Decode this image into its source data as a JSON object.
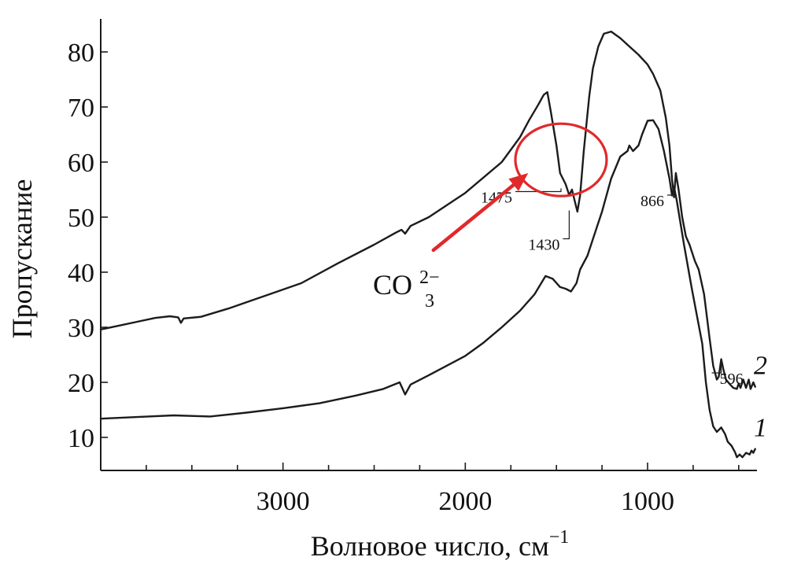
{
  "chart_data": {
    "type": "line",
    "xlabel": "Волновое число, см",
    "xlabel_sup": "−1",
    "ylabel": "Пропускание",
    "xlim": [
      4000,
      400
    ],
    "x_reversed": true,
    "ylim": [
      4,
      86
    ],
    "x_ticks": [
      3000,
      2000,
      1000
    ],
    "y_ticks": [
      10,
      20,
      30,
      40,
      50,
      60,
      70,
      80
    ],
    "grid": false,
    "legend": "none",
    "series": [
      {
        "name": "1",
        "points": [
          [
            4000,
            13.4
          ],
          [
            3800,
            13.7
          ],
          [
            3600,
            14.0
          ],
          [
            3400,
            13.8
          ],
          [
            3200,
            14.5
          ],
          [
            3000,
            15.3
          ],
          [
            2800,
            16.2
          ],
          [
            2600,
            17.6
          ],
          [
            2450,
            18.8
          ],
          [
            2360,
            20.0
          ],
          [
            2330,
            17.8
          ],
          [
            2300,
            19.6
          ],
          [
            2200,
            21.3
          ],
          [
            2000,
            24.8
          ],
          [
            1900,
            27.2
          ],
          [
            1800,
            30.0
          ],
          [
            1700,
            33.0
          ],
          [
            1620,
            36.0
          ],
          [
            1560,
            39.3
          ],
          [
            1520,
            38.8
          ],
          [
            1480,
            37.3
          ],
          [
            1450,
            37.0
          ],
          [
            1420,
            36.5
          ],
          [
            1390,
            38.0
          ],
          [
            1370,
            40.5
          ],
          [
            1330,
            43.0
          ],
          [
            1300,
            46.0
          ],
          [
            1250,
            51.0
          ],
          [
            1200,
            57.0
          ],
          [
            1150,
            61.0
          ],
          [
            1110,
            62.0
          ],
          [
            1100,
            63.0
          ],
          [
            1080,
            62.0
          ],
          [
            1050,
            63.0
          ],
          [
            1030,
            65.0
          ],
          [
            1000,
            67.5
          ],
          [
            970,
            67.6
          ],
          [
            940,
            66.0
          ],
          [
            910,
            62.0
          ],
          [
            880,
            57.0
          ],
          [
            866,
            54.0
          ],
          [
            855,
            55.5
          ],
          [
            840,
            53.0
          ],
          [
            820,
            49.0
          ],
          [
            800,
            45.0
          ],
          [
            760,
            37.5
          ],
          [
            740,
            34.0
          ],
          [
            700,
            27.0
          ],
          [
            680,
            20.0
          ],
          [
            660,
            15.0
          ],
          [
            640,
            12.0
          ],
          [
            620,
            11.0
          ],
          [
            596,
            11.8
          ],
          [
            575,
            10.6
          ],
          [
            560,
            9.2
          ],
          [
            540,
            8.5
          ],
          [
            520,
            7.3
          ],
          [
            510,
            6.4
          ],
          [
            495,
            6.9
          ],
          [
            480,
            6.4
          ],
          [
            460,
            7.2
          ],
          [
            440,
            6.9
          ],
          [
            430,
            7.6
          ],
          [
            420,
            7.2
          ],
          [
            410,
            7.9
          ]
        ]
      },
      {
        "name": "2",
        "points": [
          [
            4000,
            29.6
          ],
          [
            3900,
            30.3
          ],
          [
            3800,
            31.0
          ],
          [
            3700,
            31.7
          ],
          [
            3620,
            32.0
          ],
          [
            3575,
            31.8
          ],
          [
            3560,
            30.8
          ],
          [
            3545,
            31.6
          ],
          [
            3450,
            31.9
          ],
          [
            3300,
            33.4
          ],
          [
            3100,
            35.7
          ],
          [
            2900,
            38.0
          ],
          [
            2700,
            41.6
          ],
          [
            2500,
            45.0
          ],
          [
            2380,
            47.2
          ],
          [
            2350,
            47.7
          ],
          [
            2330,
            47.0
          ],
          [
            2300,
            48.4
          ],
          [
            2200,
            50.0
          ],
          [
            2000,
            54.4
          ],
          [
            1800,
            60.0
          ],
          [
            1700,
            64.5
          ],
          [
            1650,
            67.6
          ],
          [
            1600,
            70.4
          ],
          [
            1570,
            72.2
          ],
          [
            1550,
            72.7
          ],
          [
            1530,
            69.0
          ],
          [
            1500,
            63.0
          ],
          [
            1480,
            58.0
          ],
          [
            1450,
            56.0
          ],
          [
            1430,
            54.0
          ],
          [
            1415,
            55.0
          ],
          [
            1400,
            53.0
          ],
          [
            1385,
            51.0
          ],
          [
            1370,
            54.0
          ],
          [
            1350,
            62.0
          ],
          [
            1320,
            72.0
          ],
          [
            1300,
            77.0
          ],
          [
            1270,
            81.0
          ],
          [
            1240,
            83.3
          ],
          [
            1200,
            83.7
          ],
          [
            1150,
            82.5
          ],
          [
            1100,
            81.0
          ],
          [
            1050,
            79.5
          ],
          [
            1000,
            77.7
          ],
          [
            970,
            76.0
          ],
          [
            930,
            73.0
          ],
          [
            900,
            68.0
          ],
          [
            880,
            63.0
          ],
          [
            866,
            57.0
          ],
          [
            855,
            53.6
          ],
          [
            845,
            58.0
          ],
          [
            830,
            55.0
          ],
          [
            810,
            50.0
          ],
          [
            790,
            46.5
          ],
          [
            770,
            45.0
          ],
          [
            740,
            42.0
          ],
          [
            720,
            40.5
          ],
          [
            690,
            36.0
          ],
          [
            660,
            28.0
          ],
          [
            640,
            23.0
          ],
          [
            620,
            20.5
          ],
          [
            610,
            21.0
          ],
          [
            596,
            24.2
          ],
          [
            585,
            22.5
          ],
          [
            570,
            20.5
          ],
          [
            550,
            19.7
          ],
          [
            530,
            19.0
          ],
          [
            510,
            18.8
          ],
          [
            500,
            19.8
          ],
          [
            490,
            19.0
          ],
          [
            475,
            20.5
          ],
          [
            460,
            19.0
          ],
          [
            445,
            20.5
          ],
          [
            435,
            18.8
          ],
          [
            420,
            20.0
          ],
          [
            410,
            19.2
          ]
        ]
      }
    ],
    "peak_labels": [
      {
        "text": "1475",
        "x": 1475,
        "y": 55.5
      },
      {
        "text": "1430",
        "x": 1430,
        "y": 51.5
      },
      {
        "text": "866",
        "x": 866,
        "y": 54.0
      },
      {
        "text": "596",
        "x": 596,
        "y": 24.0
      }
    ],
    "annotation": {
      "text": "CO",
      "subscript": "3",
      "superscript": "2−",
      "circle_color": "#e0292b",
      "arrow_color": "#e0292b",
      "circle_center": [
        1475,
        60.4
      ],
      "arrow_from": [
        2175,
        44
      ],
      "arrow_to": [
        1655,
        58
      ]
    },
    "line_color": "#1c1c1c"
  }
}
